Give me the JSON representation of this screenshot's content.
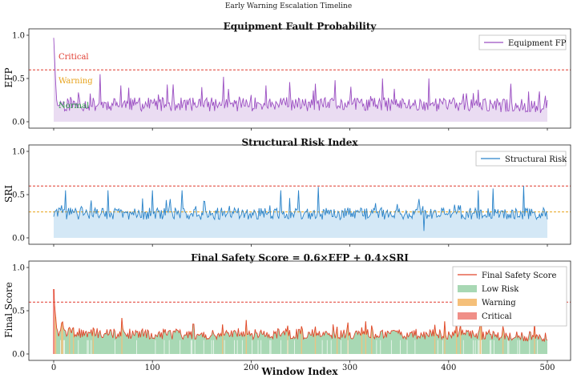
{
  "figure_title": "Early Warning Escalation Timeline",
  "colors": {
    "efp": "#9b4fc2",
    "efp_fill": "#eadcf2",
    "sri": "#2a83c9",
    "sri_fill": "#d4e8f6",
    "final": "#e0462a",
    "low_risk": "#a8d8b4",
    "warning": "#f5c07a",
    "critical": "#f08f88",
    "critical_line": "#e03a2f",
    "warning_line": "#e7a21a"
  },
  "chart_data": [
    {
      "type": "line",
      "title": "Equipment Fault Probability",
      "ylabel": "EFP",
      "xlim": [
        0,
        500
      ],
      "ylim": [
        0,
        1.0
      ],
      "yticks": [
        "0.0",
        "0.5",
        "1.0"
      ],
      "critical_threshold": 0.6,
      "annotations": [
        "Critical",
        "Warning",
        "Normal"
      ],
      "legend": {
        "position": "top-right",
        "entries": [
          "Equipment FP"
        ]
      },
      "series": [
        {
          "name": "Equipment FP",
          "description": "starts near 0.97 at index 0, drops to ~0.25 by index 3, then fluctuates 0.10-0.35 with spikes to ~0.55",
          "keypoints": {
            "x": [
              0,
              1,
              2,
              3,
              5,
              10,
              100,
              200,
              300,
              400,
              500
            ],
            "y": [
              0.97,
              0.72,
              0.45,
              0.25,
              0.22,
              0.2,
              0.2,
              0.2,
              0.2,
              0.2,
              0.18
            ]
          },
          "spikes": {
            "x": [
              47,
              68,
              115,
              150,
              172,
              215,
              265,
              285,
              333,
              345,
              380,
              430,
              463,
              498
            ],
            "y": [
              0.55,
              0.42,
              0.43,
              0.4,
              0.52,
              0.42,
              0.44,
              0.48,
              0.5,
              0.38,
              0.5,
              0.37,
              0.44,
              0.3
            ]
          }
        }
      ]
    },
    {
      "type": "line",
      "title": "Structural Risk Index",
      "ylabel": "SRI",
      "xlim": [
        0,
        500
      ],
      "ylim": [
        0,
        1.0
      ],
      "yticks": [
        "0.0",
        "0.5",
        "1.0"
      ],
      "critical_threshold": 0.6,
      "warning_threshold": 0.3,
      "legend": {
        "position": "top-right",
        "entries": [
          "Structural Risk"
        ]
      },
      "series": [
        {
          "name": "Structural Risk",
          "description": "fluctuates around 0.28 between 0.05 and 0.6",
          "baseline": 0.28,
          "spikes": {
            "x": [
              12,
              55,
              100,
              130,
              230,
              248,
              268,
              370,
              375,
              430,
              445,
              476
            ],
            "y": [
              0.55,
              0.55,
              0.55,
              0.55,
              0.55,
              0.55,
              0.59,
              0.45,
              0.08,
              0.55,
              0.57,
              0.6
            ]
          }
        }
      ]
    },
    {
      "type": "line",
      "title": "Final Safety Score = 0.6×EFP + 0.4×SRI",
      "ylabel": "Final Score",
      "xlabel": "Window Index",
      "xlim": [
        0,
        500
      ],
      "ylim": [
        0,
        1.0
      ],
      "xticks": [
        "0",
        "100",
        "200",
        "300",
        "400",
        "500"
      ],
      "yticks": [
        "0.0",
        "0.5",
        "1.0"
      ],
      "critical_threshold": 0.6,
      "legend": {
        "position": "top-right",
        "entries": [
          "Final Safety Score",
          "Low Risk",
          "Warning",
          "Critical"
        ]
      },
      "series": [
        {
          "name": "Final Safety Score",
          "description": "starts ~0.75 at index 0, drops to ~0.25, fluctuates 0.15-0.40",
          "keypoints": {
            "x": [
              0,
              1,
              3,
              5,
              100,
              200,
              300,
              400,
              500
            ],
            "y": [
              0.75,
              0.55,
              0.3,
              0.25,
              0.23,
              0.23,
              0.23,
              0.23,
              0.2
            ]
          }
        }
      ],
      "regions": [
        "Low Risk",
        "Warning",
        "Critical"
      ]
    }
  ]
}
